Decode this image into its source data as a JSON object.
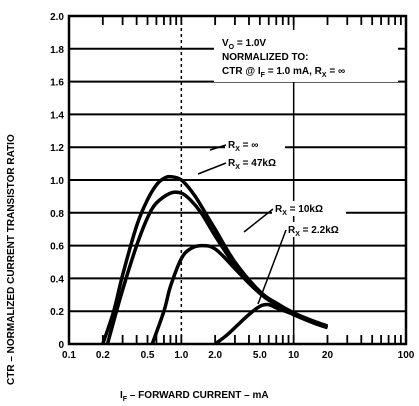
{
  "chart_data": {
    "type": "line",
    "title": "",
    "xlabel": "IF – FORWARD CURRENT – mA",
    "ylabel": "CTR – NORMALIZED CURRENT TRANSISTOR RATIO",
    "x_scale": "log",
    "xlim": [
      0.1,
      100
    ],
    "ylim": [
      0,
      2.0
    ],
    "x_ticks": [
      {
        "value": 0.1,
        "label": "0.1"
      },
      {
        "value": 0.2,
        "label": "0.2"
      },
      {
        "value": 0.5,
        "label": "0.5"
      },
      {
        "value": 1.0,
        "label": "1.0"
      },
      {
        "value": 2.0,
        "label": "2.0"
      },
      {
        "value": 5.0,
        "label": "5.0"
      },
      {
        "value": 10,
        "label": "10"
      },
      {
        "value": 20,
        "label": "20"
      },
      {
        "value": 100,
        "label": "100"
      }
    ],
    "y_ticks": [
      {
        "value": 0,
        "label": "0"
      },
      {
        "value": 0.2,
        "label": "0.2"
      },
      {
        "value": 0.4,
        "label": "0.4"
      },
      {
        "value": 0.6,
        "label": "0.6"
      },
      {
        "value": 0.8,
        "label": "0.8"
      },
      {
        "value": 1.0,
        "label": "1.0"
      },
      {
        "value": 1.2,
        "label": "1.2"
      },
      {
        "value": 1.4,
        "label": "1.4"
      },
      {
        "value": 1.6,
        "label": "1.6"
      },
      {
        "value": 1.8,
        "label": "1.8"
      },
      {
        "value": 2.0,
        "label": "2.0"
      }
    ],
    "grid": true,
    "annotation": {
      "lines": [
        "VO = 1.0V",
        "NORMALIZED TO:",
        "CTR @ IF = 1.0 mA, RX = ∞"
      ]
    },
    "series": [
      {
        "name": "RX = ∞",
        "x": [
          0.2,
          0.25,
          0.3,
          0.4,
          0.5,
          0.6,
          0.7,
          0.8,
          1.0,
          1.3,
          1.7,
          2.0,
          3.0,
          5.0,
          7.0,
          10,
          15,
          20
        ],
        "y": [
          0.0,
          0.2,
          0.42,
          0.72,
          0.88,
          0.97,
          1.01,
          1.02,
          1.0,
          0.91,
          0.78,
          0.7,
          0.5,
          0.32,
          0.25,
          0.19,
          0.14,
          0.11
        ]
      },
      {
        "name": "RX = 47kΩ",
        "x": [
          0.22,
          0.3,
          0.4,
          0.5,
          0.6,
          0.8,
          1.0,
          1.2,
          1.5,
          2.0,
          3.0,
          5.0,
          7.0,
          10,
          15,
          20
        ],
        "y": [
          0.0,
          0.33,
          0.6,
          0.77,
          0.86,
          0.92,
          0.92,
          0.88,
          0.8,
          0.66,
          0.48,
          0.31,
          0.24,
          0.18,
          0.13,
          0.1
        ]
      },
      {
        "name": "RX = 10kΩ",
        "x": [
          0.55,
          0.7,
          0.8,
          1.0,
          1.2,
          1.5,
          2.0,
          3.0,
          4.0,
          5.0,
          7.0,
          10,
          15,
          20
        ],
        "y": [
          0.0,
          0.2,
          0.35,
          0.52,
          0.58,
          0.6,
          0.58,
          0.46,
          0.37,
          0.31,
          0.24,
          0.18,
          0.13,
          0.1
        ]
      },
      {
        "name": "RX = 2.2kΩ",
        "x": [
          2.0,
          2.5,
          3.0,
          4.0,
          5.0,
          6.0,
          7.0,
          10,
          15,
          20
        ],
        "y": [
          0.0,
          0.05,
          0.1,
          0.18,
          0.23,
          0.24,
          0.22,
          0.18,
          0.13,
          0.1
        ]
      }
    ],
    "series_labels": [
      {
        "main": "R",
        "sub": "X",
        "rest": " = ∞"
      },
      {
        "main": "R",
        "sub": "X",
        "rest": " = 47kΩ"
      },
      {
        "main": "R",
        "sub": "X",
        "rest": " = 10kΩ"
      },
      {
        "main": "R",
        "sub": "X",
        "rest": " = 2.2kΩ"
      }
    ]
  }
}
